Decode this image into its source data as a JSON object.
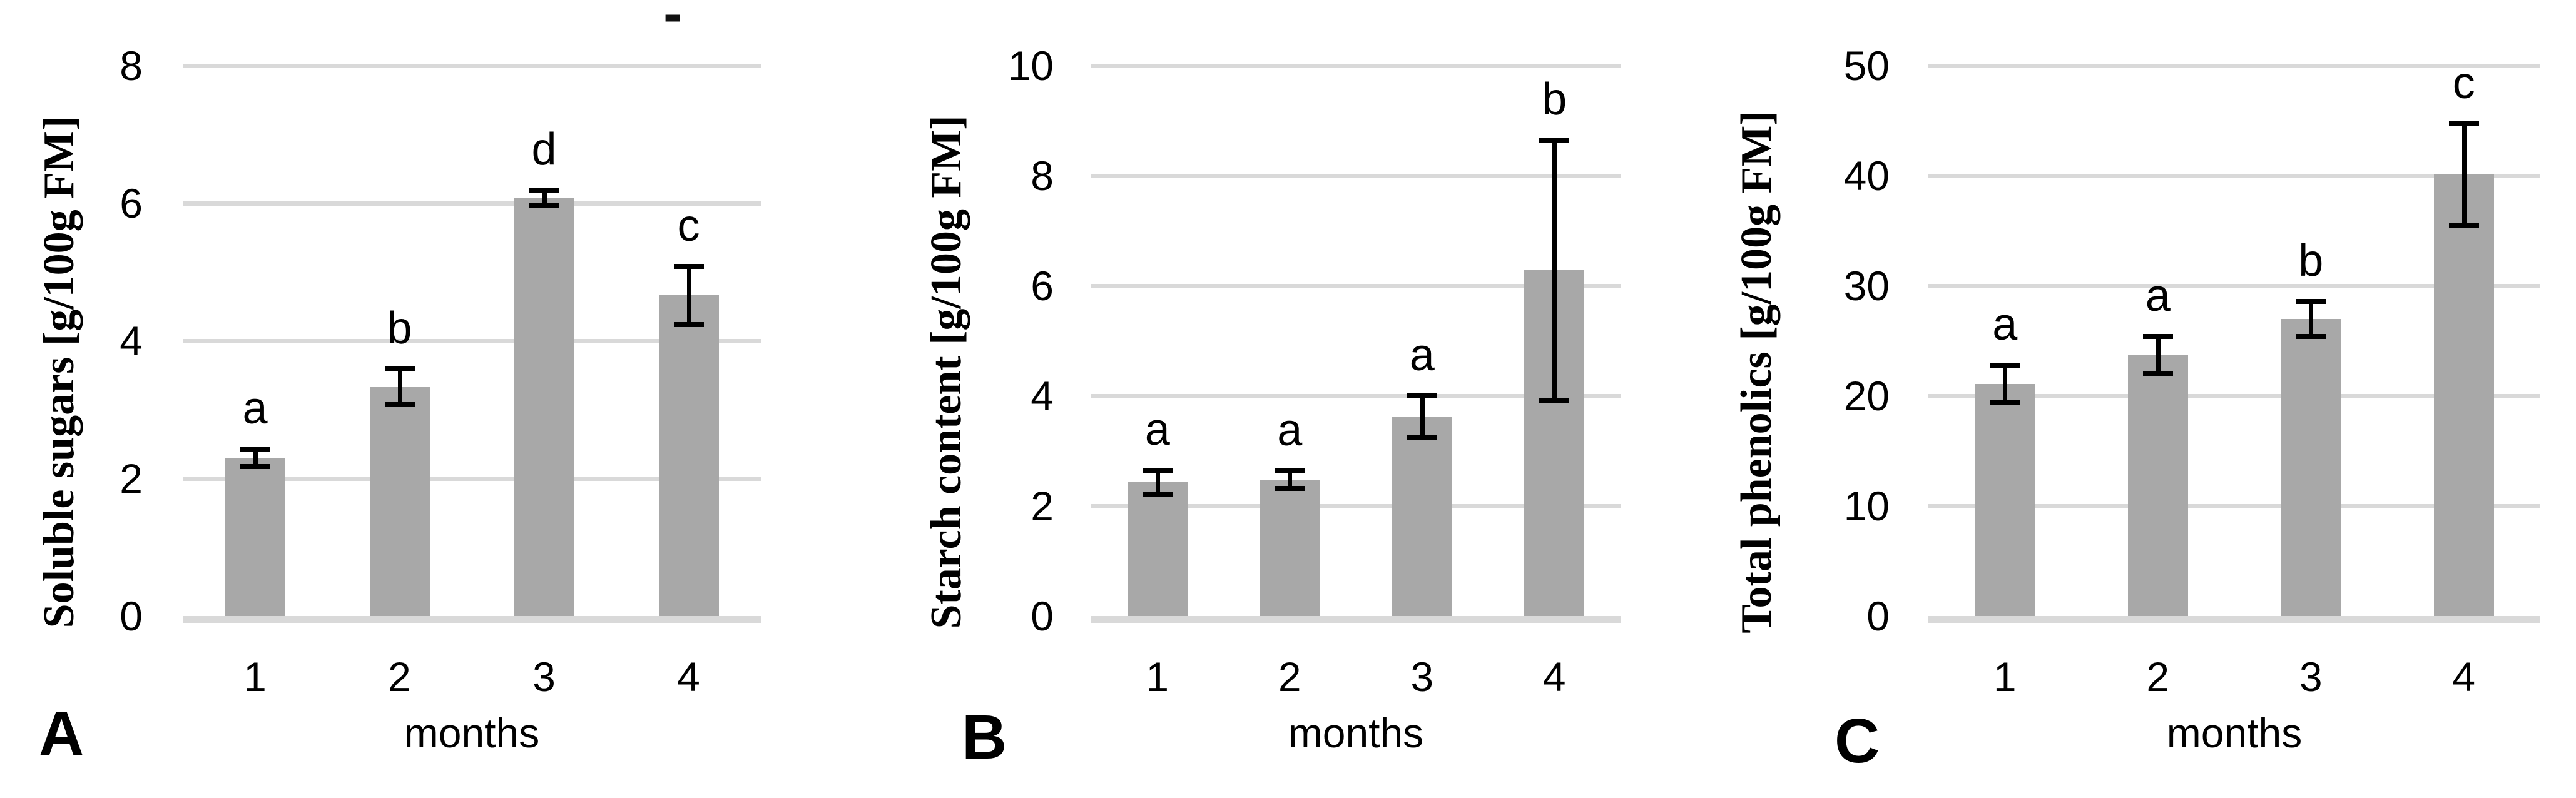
{
  "colors": {
    "bar_fill": "#a8a8a8",
    "gridline": "#d9d9d9",
    "error_bar": "#000000",
    "text": "#000000",
    "background": "#ffffff"
  },
  "artifacts": {
    "stray_dash": "-"
  },
  "chart_data": [
    {
      "panel": "A",
      "type": "bar",
      "ylabel": "Soluble sugars [g/100g FM]",
      "xlabel": "months",
      "categories": [
        "1",
        "2",
        "3",
        "4"
      ],
      "values": [
        2.3,
        3.33,
        6.08,
        4.66
      ],
      "errors": [
        0.13,
        0.26,
        0.11,
        0.42
      ],
      "sig_letters": [
        "a",
        "b",
        "d",
        "c"
      ],
      "yticks": [
        0,
        2,
        4,
        6,
        8
      ],
      "ylim": [
        0,
        8
      ],
      "grid": true,
      "legend": "none"
    },
    {
      "panel": "B",
      "type": "bar",
      "ylabel": "Starch content [g/100g FM]",
      "xlabel": "months",
      "categories": [
        "1",
        "2",
        "3",
        "4"
      ],
      "values": [
        2.43,
        2.48,
        3.62,
        6.28
      ],
      "errors": [
        0.22,
        0.16,
        0.38,
        2.37
      ],
      "sig_letters": [
        "a",
        "a",
        "a",
        "b"
      ],
      "yticks": [
        0,
        2,
        4,
        6,
        8,
        10
      ],
      "ylim": [
        0,
        10
      ],
      "grid": true,
      "legend": "none"
    },
    {
      "panel": "C",
      "type": "bar",
      "ylabel": "Total phenolics [g/100g FM]",
      "xlabel": "months",
      "categories": [
        "1",
        "2",
        "3",
        "4"
      ],
      "values": [
        21.1,
        23.7,
        27.0,
        40.1
      ],
      "errors": [
        1.7,
        1.7,
        1.6,
        4.6
      ],
      "sig_letters": [
        "a",
        "a",
        "b",
        "c"
      ],
      "yticks": [
        0,
        10,
        20,
        30,
        40,
        50
      ],
      "ylim": [
        0,
        50
      ],
      "grid": true,
      "legend": "none"
    }
  ]
}
